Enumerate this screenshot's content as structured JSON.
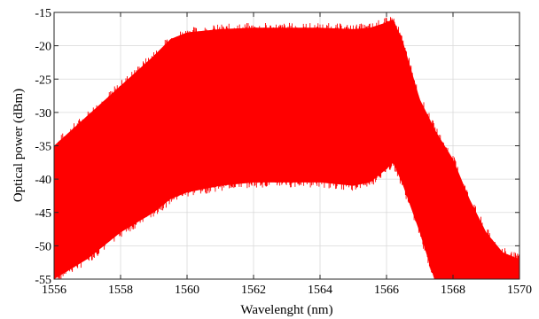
{
  "chart_data": {
    "type": "area",
    "title": "",
    "xlabel": "Wavelenght (nm)",
    "ylabel": "Optical power (dBm)",
    "xlim": [
      1556,
      1570
    ],
    "ylim": [
      -55,
      -15
    ],
    "xticks": [
      1556,
      1558,
      1560,
      1562,
      1564,
      1566,
      1568,
      1570
    ],
    "yticks": [
      -15,
      -20,
      -25,
      -30,
      -35,
      -40,
      -45,
      -50,
      -55
    ],
    "grid": true,
    "series": [
      {
        "color": "#ff0000",
        "envelope": {
          "x": [
            1556,
            1557,
            1558,
            1559,
            1559.5,
            1560,
            1561,
            1562,
            1563,
            1564,
            1565,
            1565.5,
            1566,
            1566.2,
            1566.5,
            1567,
            1567.5,
            1568,
            1568.5,
            1569,
            1569.5,
            1570
          ],
          "upper": [
            -35,
            -30.5,
            -26,
            -21.5,
            -19,
            -18,
            -17.5,
            -17.3,
            -17.3,
            -17.3,
            -17.5,
            -17.3,
            -16.5,
            -16,
            -19.5,
            -28,
            -33,
            -37,
            -43,
            -48,
            -51,
            -52
          ],
          "lower": [
            -55,
            -52,
            -48,
            -45,
            -43,
            -42,
            -41,
            -40.5,
            -40.5,
            -40.5,
            -41,
            -40.5,
            -38.5,
            -37.5,
            -41,
            -48,
            -56,
            -56,
            -56,
            -56,
            -56,
            -56
          ]
        }
      }
    ]
  }
}
